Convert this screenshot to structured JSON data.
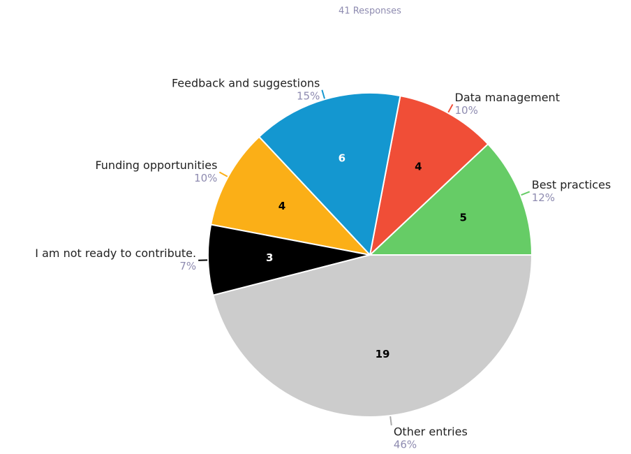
{
  "chart_data": {
    "type": "pie",
    "subtitle": "41 Responses",
    "categories": [
      "Best practices",
      "Data management",
      "Feedback and suggestions",
      "Funding opportunities",
      "I am not ready to contribute.",
      "Other entries"
    ],
    "values": [
      12,
      10,
      15,
      10,
      7,
      46
    ],
    "value_labels": [
      "12%",
      "10%",
      "15%",
      "10%",
      "7%",
      "46%"
    ],
    "counts": [
      5,
      4,
      6,
      4,
      3,
      19
    ],
    "colors": [
      "#66cc66",
      "#f04e37",
      "#1497d0",
      "#fbaf17",
      "#000000",
      "#cccccc"
    ]
  }
}
